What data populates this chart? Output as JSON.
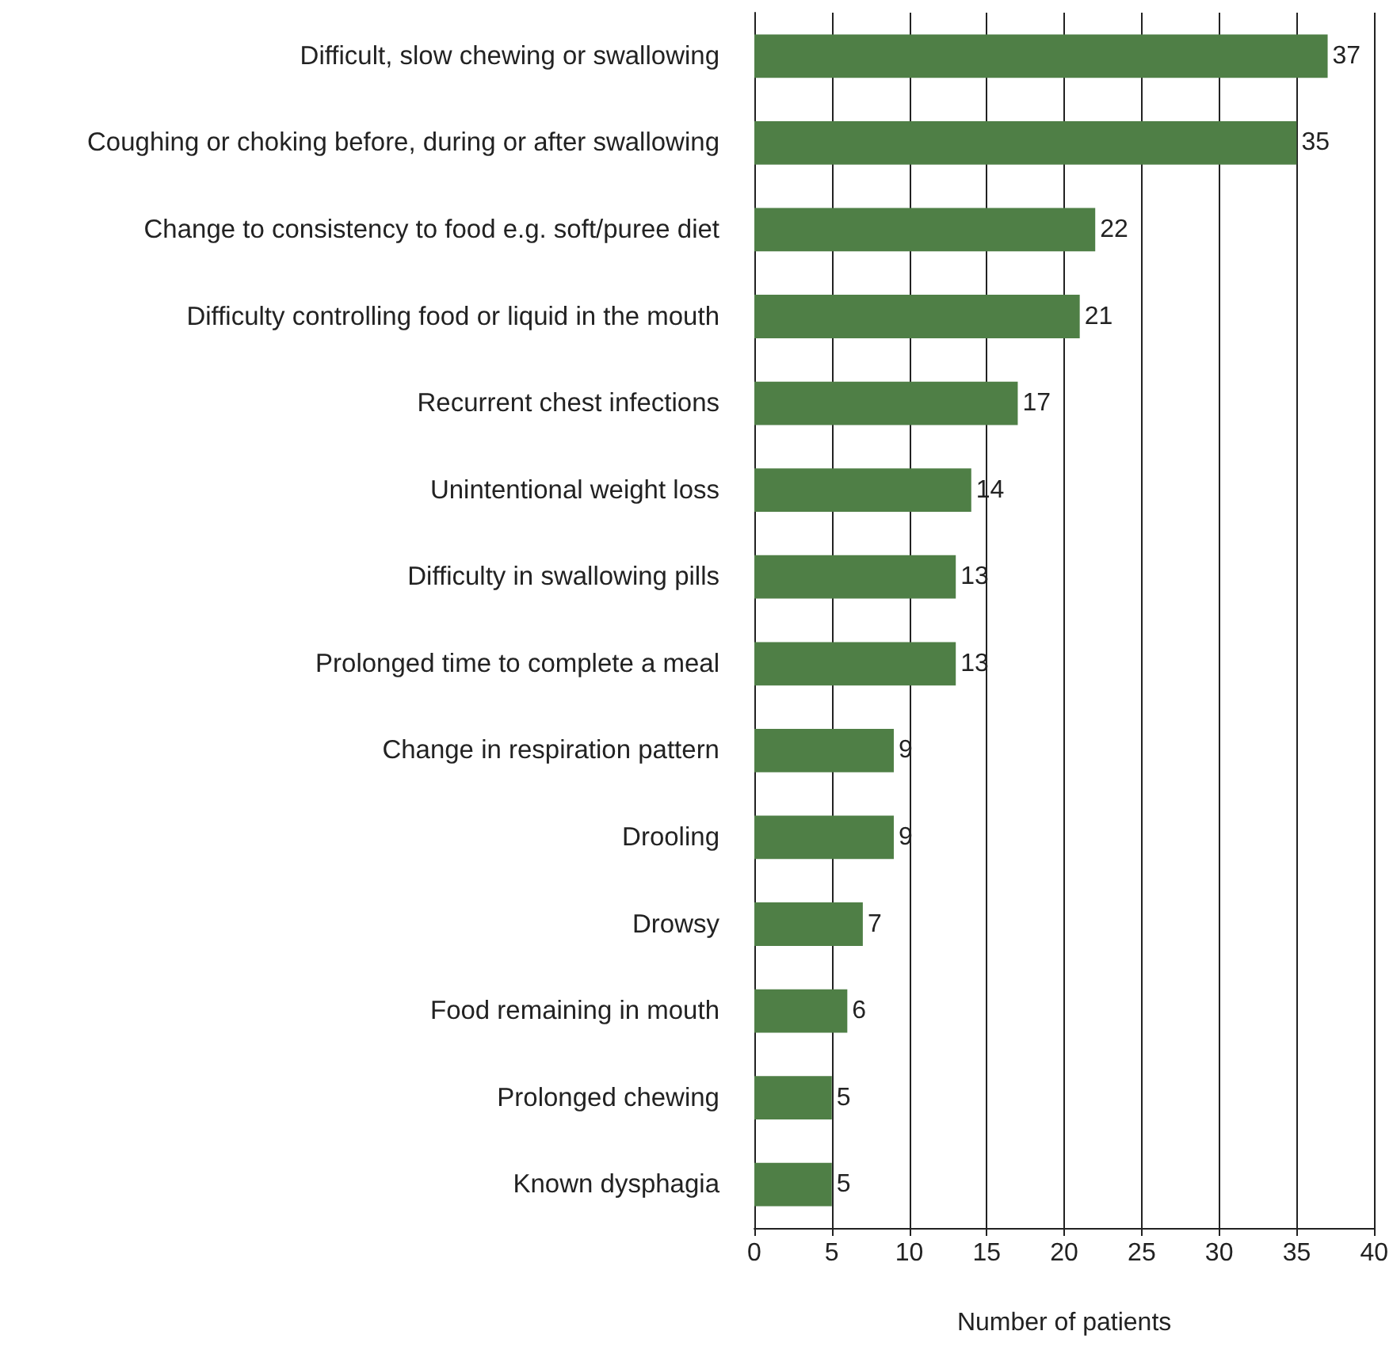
{
  "chart_data": {
    "type": "bar",
    "orientation": "horizontal",
    "xlabel": "Number of patients",
    "categories": [
      "Difficult, slow chewing or swallowing",
      "Coughing or choking before, during or after swallowing",
      "Change to consistency to food e.g. soft/puree diet",
      "Difficulty controlling food or liquid in the mouth",
      "Recurrent chest infections",
      "Unintentional weight loss",
      "Difficulty in swallowing pills",
      "Prolonged time to complete a meal",
      "Change in respiration pattern",
      "Drooling",
      "Drowsy",
      "Food remaining in mouth",
      "Prolonged chewing",
      "Known dysphagia"
    ],
    "values": [
      37,
      35,
      22,
      21,
      17,
      14,
      13,
      13,
      9,
      9,
      7,
      6,
      5,
      5
    ],
    "color": "#4f7f46",
    "xlim": [
      0,
      40
    ],
    "xticks": [
      0,
      5,
      10,
      15,
      20,
      25,
      30,
      35,
      40
    ],
    "grid": "x",
    "data_labels": true
  }
}
